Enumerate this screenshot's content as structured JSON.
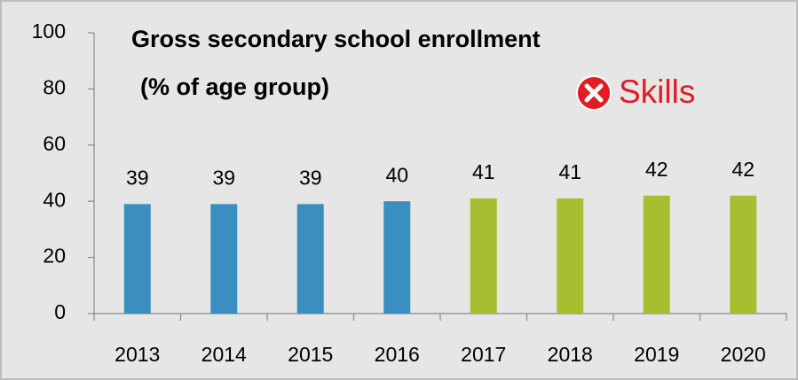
{
  "chart_data": {
    "type": "bar",
    "title": "Gross secondary school enrollment",
    "subtitle": "(% of age group)",
    "annotation": "Skills",
    "categories": [
      "2013",
      "2014",
      "2015",
      "2016",
      "2017",
      "2018",
      "2019",
      "2020"
    ],
    "values": [
      39,
      39,
      39,
      40,
      41,
      41,
      42,
      42
    ],
    "colors": [
      "#3a8fc0",
      "#3a8fc0",
      "#3a8fc0",
      "#3a8fc0",
      "#a8be30",
      "#a8be30",
      "#a8be30",
      "#a8be30"
    ],
    "ylim": [
      0,
      100
    ],
    "yticks": [
      0,
      20,
      40,
      60,
      80,
      100
    ],
    "grid": false
  }
}
